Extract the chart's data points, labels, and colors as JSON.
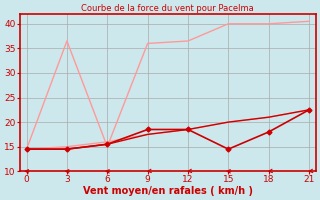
{
  "title": "Courbe de la force du vent pour Pacelma",
  "xlabel": "Vent moyen/en rafales ( km/h )",
  "bg_color": "#cce8ed",
  "grid_color": "#aaaaaa",
  "axis_color": "#cc0000",
  "text_color": "#cc0000",
  "x_ticks": [
    0,
    3,
    6,
    9,
    12,
    15,
    18,
    21
  ],
  "y_ticks": [
    10,
    15,
    20,
    25,
    30,
    35,
    40
  ],
  "xlim": [
    -0.5,
    21.5
  ],
  "ylim": [
    10,
    42
  ],
  "series": [
    {
      "x": [
        0,
        3,
        6,
        9,
        12,
        15,
        18,
        21
      ],
      "y": [
        14.5,
        36.5,
        15.0,
        36.0,
        36.5,
        40.0,
        40.0,
        40.5
      ],
      "color": "#ff9999",
      "linewidth": 1.0,
      "marker": null
    },
    {
      "x": [
        0,
        3,
        6,
        9,
        12,
        15,
        18,
        21
      ],
      "y": [
        14.5,
        15.0,
        16.0,
        17.5,
        18.5,
        20.0,
        21.0,
        22.5
      ],
      "color": "#ff9999",
      "linewidth": 1.0,
      "marker": null
    },
    {
      "x": [
        0,
        3,
        6,
        9,
        12,
        15,
        18,
        21
      ],
      "y": [
        14.5,
        14.5,
        15.5,
        18.5,
        18.5,
        14.5,
        18.0,
        22.5
      ],
      "color": "#cc0000",
      "linewidth": 1.2,
      "marker": "D",
      "markersize": 2.5
    },
    {
      "x": [
        0,
        3,
        6,
        9,
        12,
        15,
        18,
        21
      ],
      "y": [
        14.5,
        14.5,
        15.5,
        17.5,
        18.5,
        20.0,
        21.0,
        22.5
      ],
      "color": "#cc0000",
      "linewidth": 1.0,
      "marker": null
    }
  ],
  "arrows": {
    "x": [
      0,
      3,
      6,
      9,
      12,
      15,
      18,
      21
    ],
    "angles_deg": [
      180,
      180,
      180,
      225,
      225,
      180,
      225,
      225
    ]
  }
}
